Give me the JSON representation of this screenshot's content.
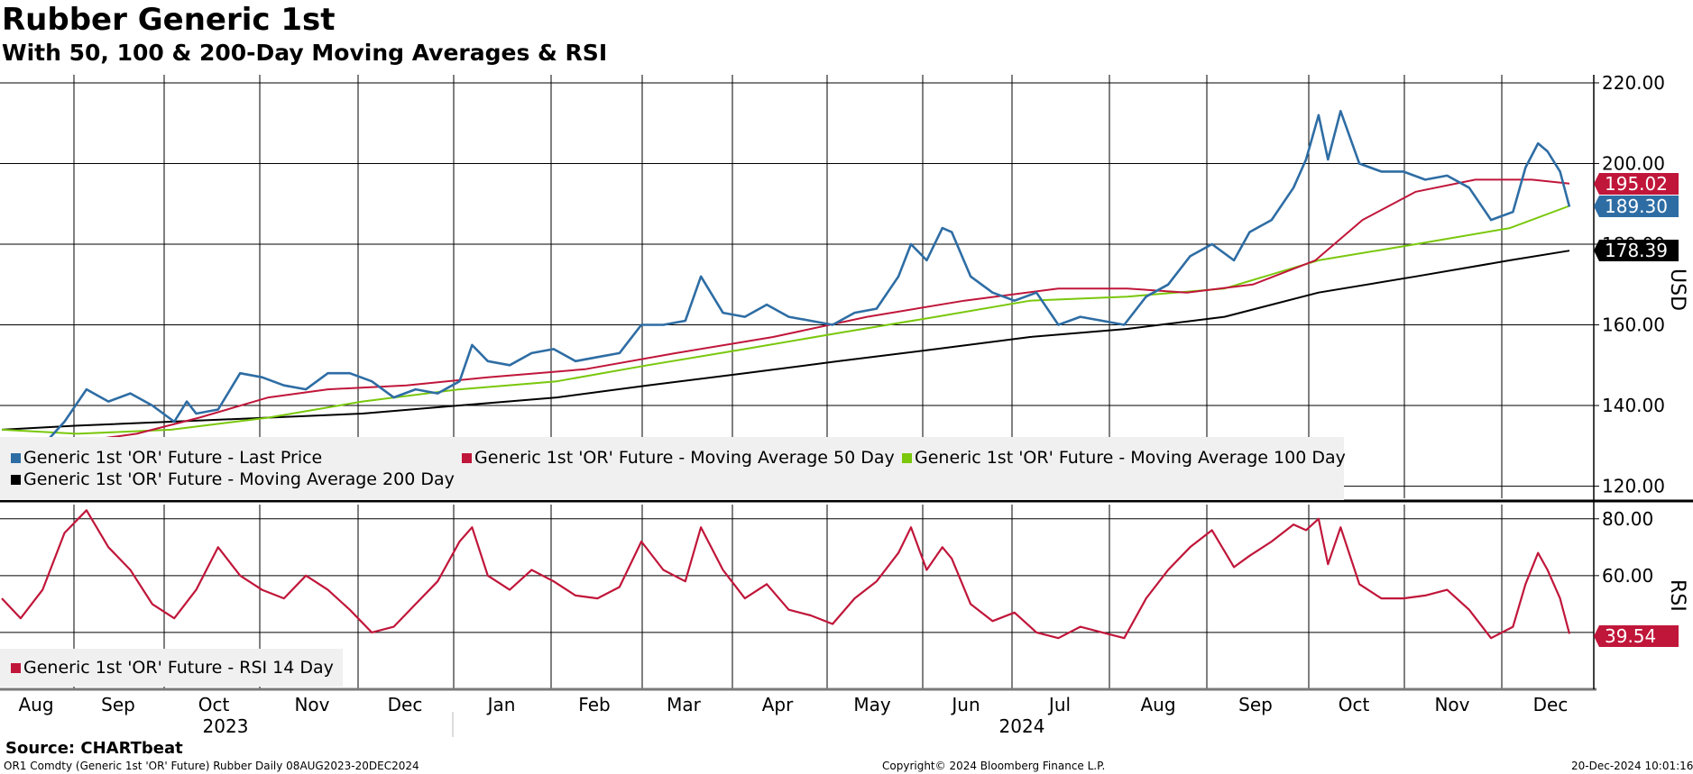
{
  "header": {
    "title": "Rubber Generic 1st",
    "subtitle": "With 50, 100 & 200-Day Moving Averages & RSI"
  },
  "footer": {
    "source": "Source: CHARTbeat",
    "ticker_info": "OR1 Comdty (Generic 1st 'OR' Future) Rubber  Daily 08AUG2023-20DEC2024",
    "copyright": "Copyright© 2024 Bloomberg Finance L.P.",
    "timestamp": "20-Dec-2024 10:01:16"
  },
  "colors": {
    "price": "#2e6da4",
    "ma50": "#c0163a",
    "ma100": "#7ac70c",
    "ma200": "#000000",
    "rsi": "#c0163a",
    "legend_bg": "#f0f0f0"
  },
  "chart_data": [
    {
      "type": "line",
      "panel": "price",
      "ylabel": "USD",
      "ylim": [
        117,
        222
      ],
      "yticks": [
        "120.00",
        "140.00",
        "160.00",
        "180.00",
        "200.00",
        "220.00"
      ],
      "grid": true,
      "legend_position": "bottom-left",
      "x_month_labels": [
        "Aug",
        "Sep",
        "Oct",
        "Nov",
        "Dec",
        "Jan",
        "Feb",
        "Mar",
        "Apr",
        "May",
        "Jun",
        "Jul",
        "Aug",
        "Sep",
        "Oct",
        "Nov",
        "Dec"
      ],
      "x_year_labels": [
        "2023",
        "2024"
      ],
      "series": [
        {
          "name": "Generic 1st 'OR' Future - Last Price",
          "color_key": "price",
          "last_label": "189.30",
          "points": [
            [
              "2023-08-08",
              128
            ],
            [
              "2023-08-14",
              126
            ],
            [
              "2023-08-21",
              130
            ],
            [
              "2023-08-28",
              136
            ],
            [
              "2023-09-04",
              144
            ],
            [
              "2023-09-11",
              141
            ],
            [
              "2023-09-18",
              143
            ],
            [
              "2023-09-25",
              140
            ],
            [
              "2023-10-02",
              136
            ],
            [
              "2023-10-06",
              141
            ],
            [
              "2023-10-09",
              138
            ],
            [
              "2023-10-16",
              139
            ],
            [
              "2023-10-23",
              148
            ],
            [
              "2023-10-30",
              147
            ],
            [
              "2023-11-06",
              145
            ],
            [
              "2023-11-13",
              144
            ],
            [
              "2023-11-20",
              148
            ],
            [
              "2023-11-27",
              148
            ],
            [
              "2023-12-04",
              146
            ],
            [
              "2023-12-11",
              142
            ],
            [
              "2023-12-18",
              144
            ],
            [
              "2023-12-25",
              143
            ],
            [
              "2024-01-01",
              146
            ],
            [
              "2024-01-05",
              155
            ],
            [
              "2024-01-10",
              151
            ],
            [
              "2024-01-17",
              150
            ],
            [
              "2024-01-24",
              153
            ],
            [
              "2024-01-31",
              154
            ],
            [
              "2024-02-07",
              151
            ],
            [
              "2024-02-14",
              152
            ],
            [
              "2024-02-21",
              153
            ],
            [
              "2024-02-28",
              160
            ],
            [
              "2024-03-06",
              160
            ],
            [
              "2024-03-13",
              161
            ],
            [
              "2024-03-18",
              172
            ],
            [
              "2024-03-25",
              163
            ],
            [
              "2024-04-01",
              162
            ],
            [
              "2024-04-08",
              165
            ],
            [
              "2024-04-15",
              162
            ],
            [
              "2024-04-22",
              161
            ],
            [
              "2024-04-29",
              160
            ],
            [
              "2024-05-06",
              163
            ],
            [
              "2024-05-13",
              164
            ],
            [
              "2024-05-20",
              172
            ],
            [
              "2024-05-24",
              180
            ],
            [
              "2024-05-29",
              176
            ],
            [
              "2024-06-03",
              184
            ],
            [
              "2024-06-06",
              183
            ],
            [
              "2024-06-12",
              172
            ],
            [
              "2024-06-19",
              168
            ],
            [
              "2024-06-26",
              166
            ],
            [
              "2024-07-03",
              168
            ],
            [
              "2024-07-10",
              160
            ],
            [
              "2024-07-17",
              162
            ],
            [
              "2024-07-24",
              161
            ],
            [
              "2024-07-31",
              160
            ],
            [
              "2024-08-07",
              167
            ],
            [
              "2024-08-14",
              170
            ],
            [
              "2024-08-21",
              177
            ],
            [
              "2024-08-28",
              180
            ],
            [
              "2024-09-04",
              176
            ],
            [
              "2024-09-09",
              183
            ],
            [
              "2024-09-16",
              186
            ],
            [
              "2024-09-23",
              194
            ],
            [
              "2024-09-27",
              201
            ],
            [
              "2024-10-01",
              212
            ],
            [
              "2024-10-04",
              201
            ],
            [
              "2024-10-08",
              213
            ],
            [
              "2024-10-14",
              200
            ],
            [
              "2024-10-21",
              198
            ],
            [
              "2024-10-28",
              198
            ],
            [
              "2024-11-04",
              196
            ],
            [
              "2024-11-11",
              197
            ],
            [
              "2024-11-18",
              194
            ],
            [
              "2024-11-25",
              186
            ],
            [
              "2024-12-02",
              188
            ],
            [
              "2024-12-06",
              199
            ],
            [
              "2024-12-10",
              205
            ],
            [
              "2024-12-13",
              203
            ],
            [
              "2024-12-17",
              198
            ],
            [
              "2024-12-20",
              189.3
            ]
          ]
        },
        {
          "name": "Generic 1st 'OR' Future - Moving Average 50 Day",
          "color_key": "ma50",
          "last_label": "195.02",
          "points": [
            [
              "2023-08-08",
              131
            ],
            [
              "2023-09-01",
              131
            ],
            [
              "2023-09-20",
              133
            ],
            [
              "2023-10-10",
              137
            ],
            [
              "2023-11-01",
              142
            ],
            [
              "2023-11-20",
              144
            ],
            [
              "2023-12-15",
              145
            ],
            [
              "2024-01-10",
              147
            ],
            [
              "2024-02-10",
              149
            ],
            [
              "2024-03-10",
              153
            ],
            [
              "2024-04-10",
              157
            ],
            [
              "2024-05-10",
              162
            ],
            [
              "2024-06-10",
              166
            ],
            [
              "2024-07-10",
              169
            ],
            [
              "2024-08-01",
              169
            ],
            [
              "2024-08-20",
              168
            ],
            [
              "2024-09-10",
              170
            ],
            [
              "2024-09-30",
              176
            ],
            [
              "2024-10-15",
              186
            ],
            [
              "2024-11-01",
              193
            ],
            [
              "2024-11-20",
              196
            ],
            [
              "2024-12-08",
              196
            ],
            [
              "2024-12-20",
              195.02
            ]
          ]
        },
        {
          "name": "Generic 1st 'OR' Future - Moving Average 100 Day",
          "color_key": "ma100",
          "last_label": "",
          "points": [
            [
              "2023-08-08",
              134
            ],
            [
              "2023-09-01",
              133
            ],
            [
              "2023-10-01",
              134
            ],
            [
              "2023-11-01",
              137
            ],
            [
              "2023-12-01",
              141
            ],
            [
              "2024-01-01",
              144
            ],
            [
              "2024-02-01",
              146
            ],
            [
              "2024-03-01",
              150
            ],
            [
              "2024-04-01",
              154
            ],
            [
              "2024-05-01",
              158
            ],
            [
              "2024-06-01",
              162
            ],
            [
              "2024-07-01",
              166
            ],
            [
              "2024-08-01",
              167
            ],
            [
              "2024-09-01",
              169
            ],
            [
              "2024-10-01",
              176
            ],
            [
              "2024-11-01",
              180
            ],
            [
              "2024-12-01",
              184
            ],
            [
              "2024-12-20",
              189.5
            ]
          ]
        },
        {
          "name": "Generic 1st 'OR' Future - Moving Average 200 Day",
          "color_key": "ma200",
          "last_label": "178.39",
          "points": [
            [
              "2023-08-08",
              134
            ],
            [
              "2023-09-01",
              135
            ],
            [
              "2023-10-01",
              136
            ],
            [
              "2023-11-01",
              137
            ],
            [
              "2023-12-01",
              138
            ],
            [
              "2024-01-01",
              140
            ],
            [
              "2024-02-01",
              142
            ],
            [
              "2024-03-01",
              145
            ],
            [
              "2024-04-01",
              148
            ],
            [
              "2024-05-01",
              151
            ],
            [
              "2024-06-01",
              154
            ],
            [
              "2024-07-01",
              157
            ],
            [
              "2024-08-01",
              159
            ],
            [
              "2024-09-01",
              162
            ],
            [
              "2024-10-01",
              168
            ],
            [
              "2024-11-01",
              172
            ],
            [
              "2024-12-01",
              176
            ],
            [
              "2024-12-20",
              178.39
            ]
          ]
        }
      ]
    },
    {
      "type": "line",
      "panel": "rsi",
      "ylabel": "RSI",
      "ylim": [
        20,
        85
      ],
      "yticks": [
        "60.00",
        "80.00"
      ],
      "grid": true,
      "legend_position": "bottom-left",
      "series": [
        {
          "name": "Generic 1st 'OR' Future - RSI 14 Day",
          "color_key": "rsi",
          "last_label": "39.54",
          "points": [
            [
              "2023-08-08",
              52
            ],
            [
              "2023-08-14",
              45
            ],
            [
              "2023-08-21",
              55
            ],
            [
              "2023-08-28",
              75
            ],
            [
              "2023-09-04",
              83
            ],
            [
              "2023-09-11",
              70
            ],
            [
              "2023-09-18",
              62
            ],
            [
              "2023-09-25",
              50
            ],
            [
              "2023-10-02",
              45
            ],
            [
              "2023-10-09",
              55
            ],
            [
              "2023-10-16",
              70
            ],
            [
              "2023-10-23",
              60
            ],
            [
              "2023-10-30",
              55
            ],
            [
              "2023-11-06",
              52
            ],
            [
              "2023-11-13",
              60
            ],
            [
              "2023-11-20",
              55
            ],
            [
              "2023-11-27",
              48
            ],
            [
              "2023-12-04",
              40
            ],
            [
              "2023-12-11",
              42
            ],
            [
              "2023-12-18",
              50
            ],
            [
              "2023-12-25",
              58
            ],
            [
              "2024-01-01",
              72
            ],
            [
              "2024-01-05",
              77
            ],
            [
              "2024-01-10",
              60
            ],
            [
              "2024-01-17",
              55
            ],
            [
              "2024-01-24",
              62
            ],
            [
              "2024-01-31",
              58
            ],
            [
              "2024-02-07",
              53
            ],
            [
              "2024-02-14",
              52
            ],
            [
              "2024-02-21",
              56
            ],
            [
              "2024-02-28",
              72
            ],
            [
              "2024-03-06",
              62
            ],
            [
              "2024-03-13",
              58
            ],
            [
              "2024-03-18",
              77
            ],
            [
              "2024-03-25",
              62
            ],
            [
              "2024-04-01",
              52
            ],
            [
              "2024-04-08",
              57
            ],
            [
              "2024-04-15",
              48
            ],
            [
              "2024-04-22",
              46
            ],
            [
              "2024-04-29",
              43
            ],
            [
              "2024-05-06",
              52
            ],
            [
              "2024-05-13",
              58
            ],
            [
              "2024-05-20",
              68
            ],
            [
              "2024-05-24",
              77
            ],
            [
              "2024-05-29",
              62
            ],
            [
              "2024-06-03",
              70
            ],
            [
              "2024-06-06",
              66
            ],
            [
              "2024-06-12",
              50
            ],
            [
              "2024-06-19",
              44
            ],
            [
              "2024-06-26",
              47
            ],
            [
              "2024-07-03",
              40
            ],
            [
              "2024-07-10",
              38
            ],
            [
              "2024-07-17",
              42
            ],
            [
              "2024-07-24",
              40
            ],
            [
              "2024-07-31",
              38
            ],
            [
              "2024-08-07",
              52
            ],
            [
              "2024-08-14",
              62
            ],
            [
              "2024-08-21",
              70
            ],
            [
              "2024-08-28",
              76
            ],
            [
              "2024-09-04",
              63
            ],
            [
              "2024-09-09",
              67
            ],
            [
              "2024-09-16",
              72
            ],
            [
              "2024-09-23",
              78
            ],
            [
              "2024-09-27",
              76
            ],
            [
              "2024-10-01",
              80
            ],
            [
              "2024-10-04",
              64
            ],
            [
              "2024-10-08",
              77
            ],
            [
              "2024-10-14",
              57
            ],
            [
              "2024-10-21",
              52
            ],
            [
              "2024-10-28",
              52
            ],
            [
              "2024-11-04",
              53
            ],
            [
              "2024-11-11",
              55
            ],
            [
              "2024-11-18",
              48
            ],
            [
              "2024-11-25",
              38
            ],
            [
              "2024-12-02",
              42
            ],
            [
              "2024-12-06",
              57
            ],
            [
              "2024-12-10",
              68
            ],
            [
              "2024-12-13",
              62
            ],
            [
              "2024-12-17",
              52
            ],
            [
              "2024-12-20",
              39.54
            ]
          ]
        }
      ]
    }
  ]
}
